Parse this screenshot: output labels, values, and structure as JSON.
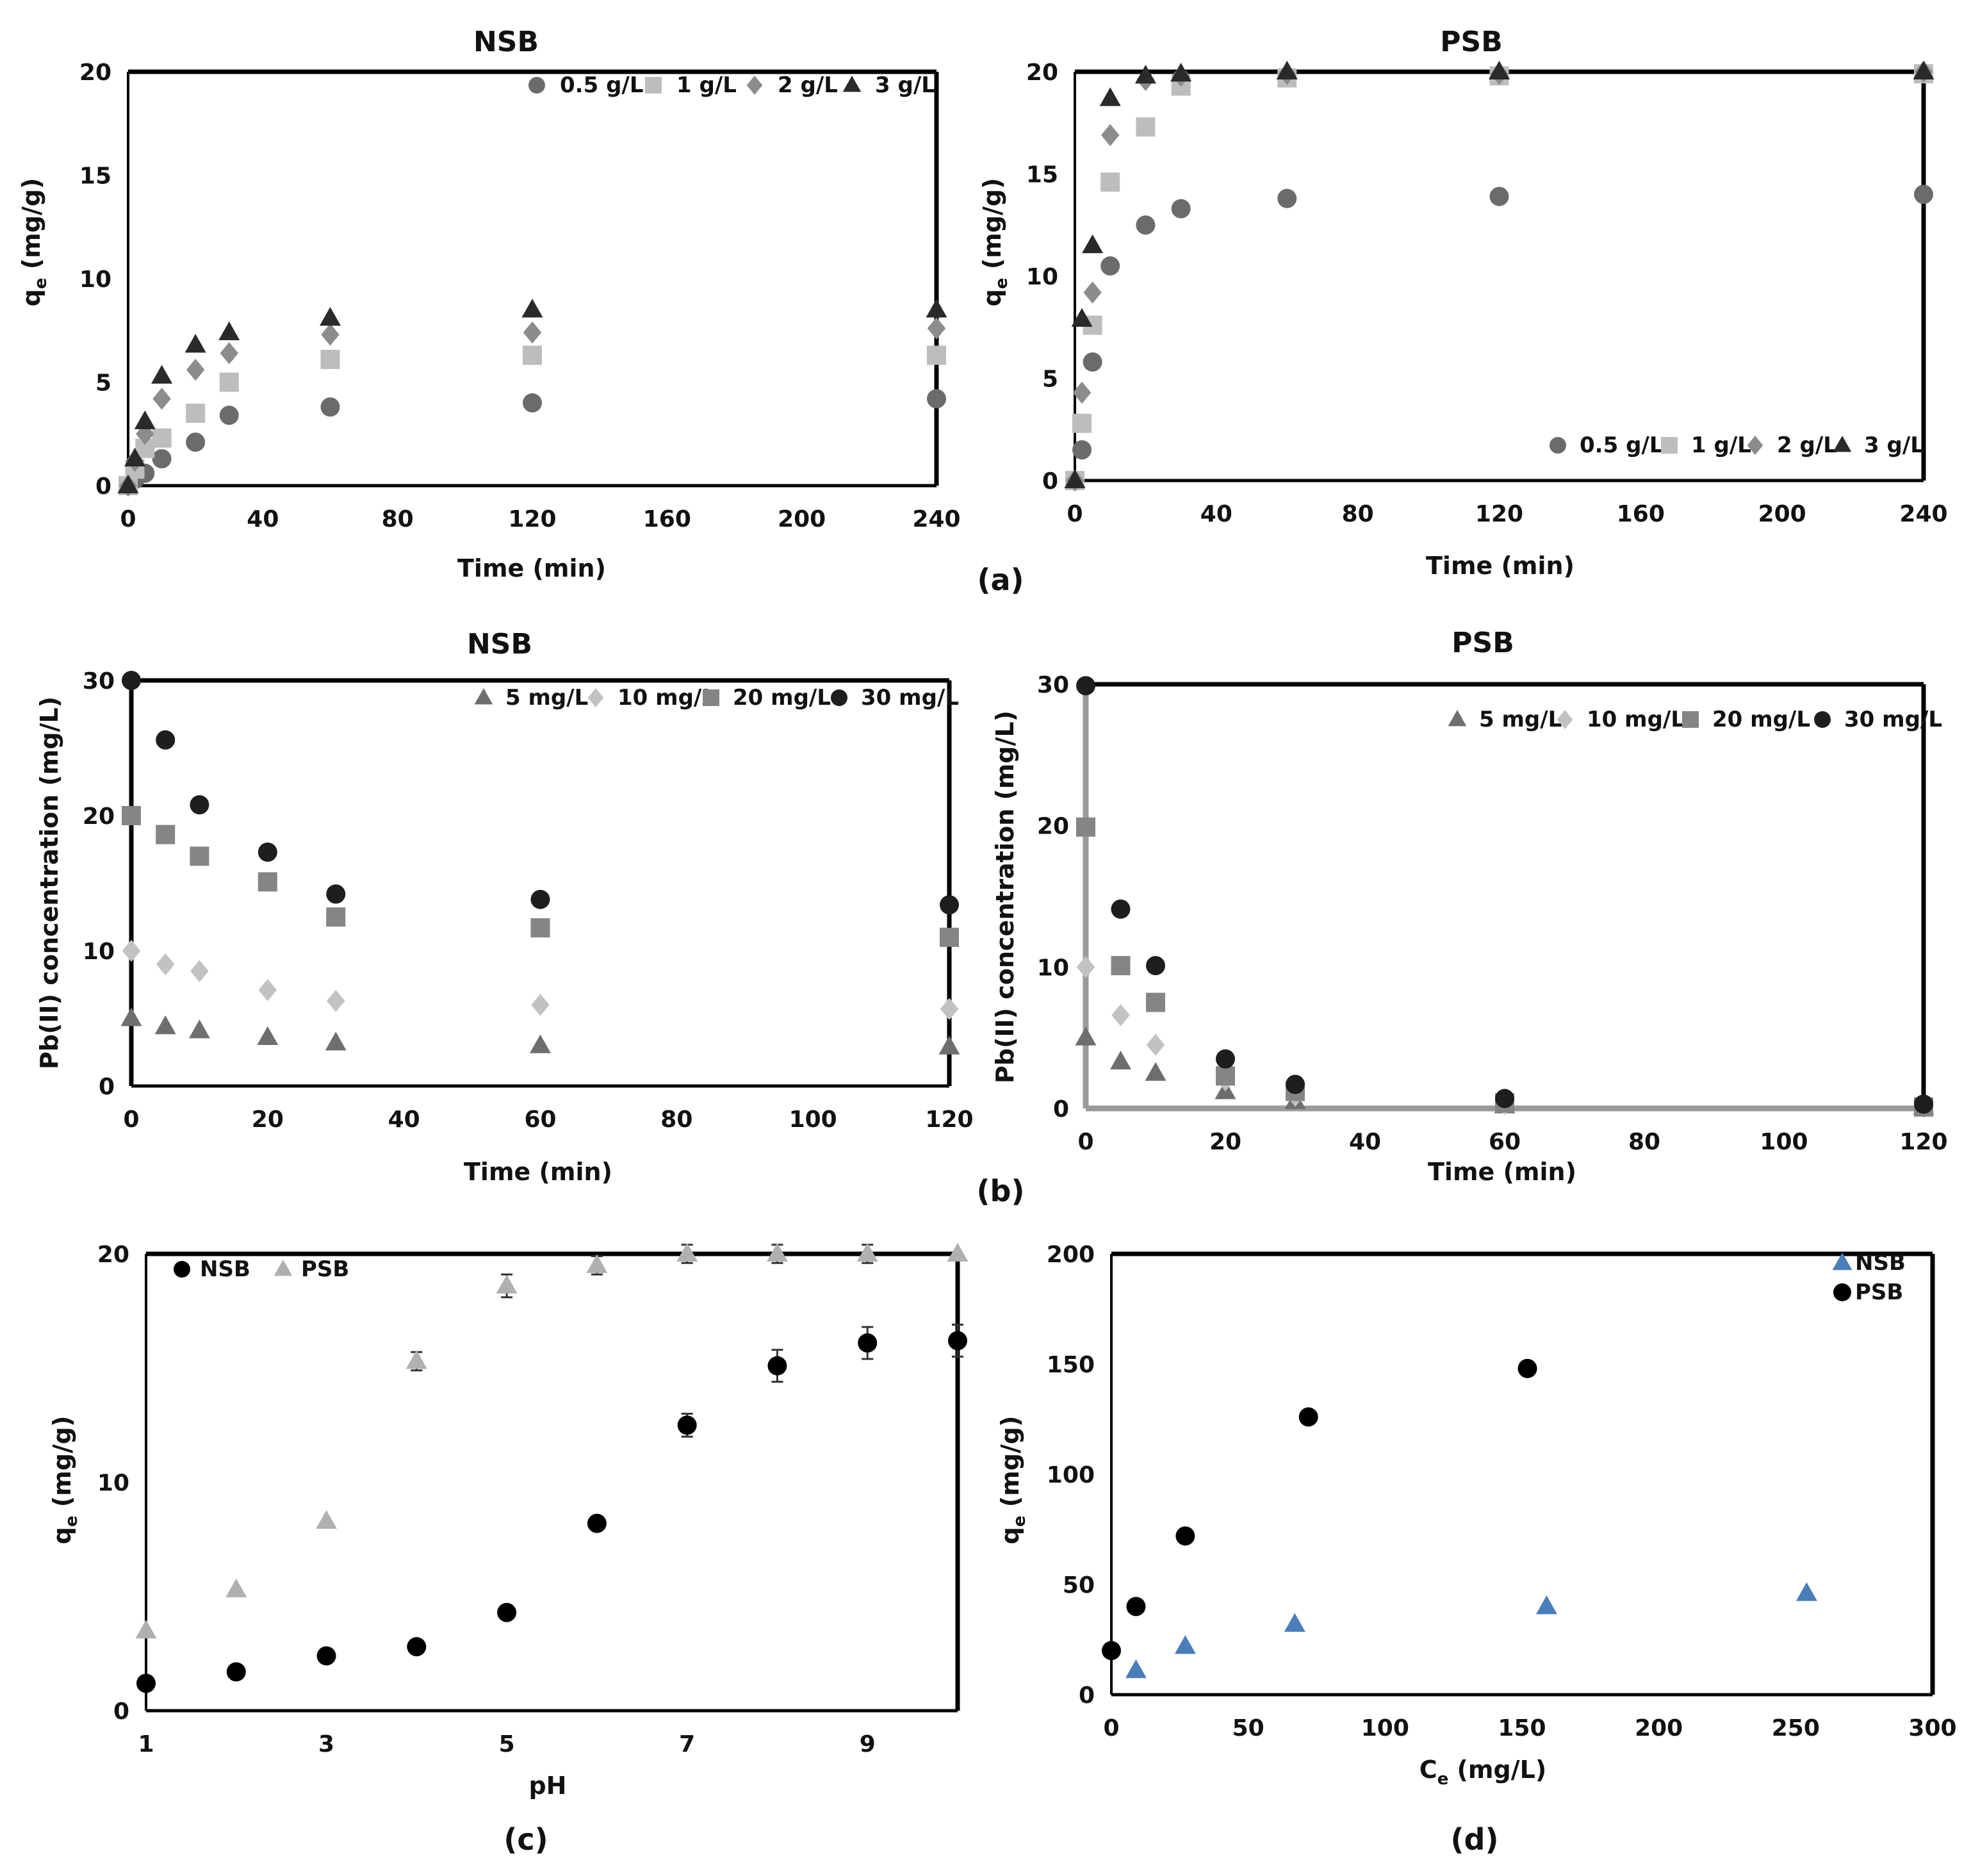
{
  "captions": {
    "a": "(a)",
    "b": "(b)",
    "c": "(c)",
    "d": "(d)"
  },
  "chart_data": [
    {
      "id": "a1",
      "type": "scatter",
      "title": "NSB",
      "xlabel": "Time (min)",
      "ylabel": "qe (mg/g)",
      "ylabel_main": "q",
      "ylabel_sub": "e",
      "ylabel_rest": " (mg/g)",
      "xlim": [
        0,
        240
      ],
      "ylim": [
        0,
        20
      ],
      "xticks": [
        0,
        40,
        80,
        120,
        160,
        200,
        240
      ],
      "yticks": [
        0,
        5,
        10,
        15,
        20
      ],
      "legend_position": "top-right",
      "series": [
        {
          "name": "0.5 g/L",
          "marker": "circle",
          "color": "#6b6b6b",
          "x": [
            0,
            2,
            5,
            10,
            20,
            30,
            60,
            120,
            240
          ],
          "y": [
            0,
            0.3,
            0.6,
            1.3,
            2.1,
            3.4,
            3.8,
            4.0,
            4.2
          ]
        },
        {
          "name": "1 g/L",
          "marker": "square",
          "color": "#bdbdbd",
          "x": [
            0,
            2,
            5,
            10,
            20,
            30,
            60,
            120,
            240
          ],
          "y": [
            0,
            0.8,
            1.8,
            2.3,
            3.5,
            5.0,
            6.1,
            6.3,
            6.3
          ]
        },
        {
          "name": "2 g/L",
          "marker": "diamond",
          "color": "#8c8c8c",
          "x": [
            0,
            2,
            5,
            10,
            20,
            30,
            60,
            120,
            240
          ],
          "y": [
            0,
            1.2,
            2.5,
            4.2,
            5.6,
            6.4,
            7.3,
            7.4,
            7.6
          ]
        },
        {
          "name": "3 g/L",
          "marker": "triangle",
          "color": "#2a2a2a",
          "x": [
            0,
            2,
            5,
            10,
            20,
            30,
            60,
            120,
            240
          ],
          "y": [
            0,
            1.3,
            3.1,
            5.3,
            6.8,
            7.4,
            8.1,
            8.5,
            8.5
          ]
        }
      ]
    },
    {
      "id": "a2",
      "type": "scatter",
      "title": "PSB",
      "xlabel": "Time (min)",
      "ylabel": "qe (mg/g)",
      "ylabel_main": "q",
      "ylabel_sub": "e",
      "ylabel_rest": " (mg/g)",
      "xlim": [
        0,
        240
      ],
      "ylim": [
        0,
        20
      ],
      "xticks": [
        0,
        40,
        80,
        120,
        160,
        200,
        240
      ],
      "yticks": [
        0,
        5,
        10,
        15,
        20
      ],
      "legend_position": "bottom-right",
      "series": [
        {
          "name": "0.5 g/L",
          "marker": "circle",
          "color": "#6b6b6b",
          "x": [
            0,
            2,
            5,
            10,
            20,
            30,
            60,
            120,
            240
          ],
          "y": [
            0,
            1.5,
            5.8,
            10.5,
            12.5,
            13.3,
            13.8,
            13.9,
            14.0
          ]
        },
        {
          "name": "1 g/L",
          "marker": "square",
          "color": "#bdbdbd",
          "x": [
            0,
            2,
            5,
            10,
            20,
            30,
            60,
            120,
            240
          ],
          "y": [
            0,
            2.8,
            7.6,
            14.6,
            17.3,
            19.3,
            19.7,
            19.8,
            19.9
          ]
        },
        {
          "name": "2 g/L",
          "marker": "diamond",
          "color": "#8c8c8c",
          "x": [
            0,
            2,
            5,
            10,
            20,
            30,
            60,
            120,
            240
          ],
          "y": [
            0,
            4.3,
            9.2,
            16.9,
            19.6,
            19.8,
            19.9,
            19.9,
            20.0
          ]
        },
        {
          "name": "3 g/L",
          "marker": "triangle",
          "color": "#2a2a2a",
          "x": [
            0,
            2,
            5,
            10,
            20,
            30,
            60,
            120,
            240
          ],
          "y": [
            0,
            7.9,
            11.5,
            18.7,
            19.8,
            19.9,
            20.0,
            20.0,
            20.0
          ]
        }
      ]
    },
    {
      "id": "b1",
      "type": "scatter",
      "title": "NSB",
      "xlabel": "Time (min)",
      "ylabel": "Pb(II) concentration (mg/L)",
      "xlim": [
        0,
        120
      ],
      "ylim": [
        0,
        30
      ],
      "xticks": [
        0,
        20,
        40,
        60,
        80,
        100,
        120
      ],
      "yticks": [
        0,
        10,
        20,
        30
      ],
      "legend_position": "top-right",
      "series": [
        {
          "name": "5 mg/L",
          "marker": "triangle",
          "color": "#6e6e6e",
          "x": [
            0,
            5,
            10,
            20,
            30,
            60,
            120
          ],
          "y": [
            5.0,
            4.4,
            4.1,
            3.6,
            3.2,
            3.0,
            2.9
          ]
        },
        {
          "name": "10 mg/L",
          "marker": "diamond",
          "color": "#c2c2c2",
          "x": [
            0,
            5,
            10,
            20,
            30,
            60,
            120
          ],
          "y": [
            10.0,
            9.0,
            8.5,
            7.1,
            6.3,
            6.0,
            5.7
          ]
        },
        {
          "name": "20 mg/L",
          "marker": "square",
          "color": "#858585",
          "x": [
            0,
            5,
            10,
            20,
            30,
            60,
            120
          ],
          "y": [
            20.0,
            18.6,
            17.0,
            15.1,
            12.5,
            11.7,
            11.0
          ]
        },
        {
          "name": "30 mg/L",
          "marker": "circle",
          "color": "#1e1e1e",
          "x": [
            0,
            5,
            10,
            20,
            30,
            60,
            120
          ],
          "y": [
            30.0,
            25.6,
            20.8,
            17.3,
            14.2,
            13.8,
            13.4
          ]
        }
      ]
    },
    {
      "id": "b2",
      "type": "scatter",
      "title": "PSB",
      "xlabel": "Time (min)",
      "ylabel": "Pb(II) concentration (mg/L)",
      "xlim": [
        0,
        120
      ],
      "ylim": [
        0,
        30
      ],
      "xticks": [
        0,
        20,
        40,
        60,
        80,
        100,
        120
      ],
      "yticks": [
        0,
        10,
        20,
        30
      ],
      "legend_position": "top-right",
      "series": [
        {
          "name": "5 mg/L",
          "marker": "triangle",
          "color": "#6e6e6e",
          "x": [
            0,
            5,
            10,
            20,
            30,
            60,
            120
          ],
          "y": [
            5.0,
            3.3,
            2.5,
            1.2,
            0.5,
            0.2,
            0.1
          ]
        },
        {
          "name": "10 mg/L",
          "marker": "diamond",
          "color": "#c2c2c2",
          "x": [
            0,
            5,
            10,
            20,
            30,
            60,
            120
          ],
          "y": [
            10.0,
            6.6,
            4.5,
            2.0,
            0.9,
            0.3,
            0.1
          ]
        },
        {
          "name": "20 mg/L",
          "marker": "square",
          "color": "#858585",
          "x": [
            0,
            5,
            10,
            20,
            30,
            60,
            120
          ],
          "y": [
            19.9,
            10.1,
            7.5,
            2.3,
            1.2,
            0.4,
            0.1
          ]
        },
        {
          "name": "30 mg/L",
          "marker": "circle",
          "color": "#1e1e1e",
          "x": [
            0,
            5,
            10,
            20,
            30,
            60,
            120
          ],
          "y": [
            29.9,
            14.1,
            10.1,
            3.5,
            1.7,
            0.7,
            0.3
          ]
        }
      ]
    },
    {
      "id": "c",
      "type": "scatter",
      "title": "",
      "xlabel": "pH",
      "ylabel": "qe (mg/g)",
      "ylabel_main": "q",
      "ylabel_sub": "e",
      "ylabel_rest": " (mg/g)",
      "xlim": [
        1,
        10
      ],
      "ylim": [
        0,
        20
      ],
      "xticks": [
        1,
        3,
        5,
        7,
        9
      ],
      "yticks": [
        0,
        10,
        20
      ],
      "legend_position": "top-left",
      "series": [
        {
          "name": "NSB",
          "marker": "circle",
          "color": "#000000",
          "x": [
            1,
            2,
            3,
            4,
            5,
            6,
            7,
            8,
            9,
            10
          ],
          "y": [
            1.2,
            1.7,
            2.4,
            2.8,
            4.3,
            8.2,
            12.5,
            15.1,
            16.1,
            16.2
          ],
          "err": [
            0,
            0,
            0,
            0,
            0,
            0,
            0.5,
            0.7,
            0.7,
            0.7
          ]
        },
        {
          "name": "PSB",
          "marker": "triangle",
          "color": "#b0b0b0",
          "x": [
            1,
            2,
            3,
            4,
            5,
            6,
            7,
            8,
            9,
            10
          ],
          "y": [
            3.5,
            5.3,
            8.3,
            15.3,
            18.6,
            19.5,
            20.0,
            20.0,
            20.0,
            20.0
          ],
          "err": [
            0,
            0,
            0,
            0.4,
            0.5,
            0.4,
            0.4,
            0.4,
            0.4,
            0
          ]
        }
      ]
    },
    {
      "id": "d",
      "type": "scatter",
      "title": "",
      "xlabel": "Ce (mg/L)",
      "xlabel_main": "C",
      "xlabel_sub": "e",
      "xlabel_rest": " (mg/L)",
      "ylabel": "qe (mg/g)",
      "ylabel_main": "q",
      "ylabel_sub": "e",
      "ylabel_rest": " (mg/g)",
      "xlim": [
        0,
        300
      ],
      "ylim": [
        0,
        200
      ],
      "xticks": [
        0,
        50,
        100,
        150,
        200,
        250,
        300
      ],
      "yticks": [
        0,
        50,
        100,
        150,
        200
      ],
      "legend_position": "top-right",
      "series": [
        {
          "name": "NSB",
          "marker": "triangle",
          "color": "#4a7ebb",
          "x": [
            9,
            27,
            67,
            159,
            254
          ],
          "y": [
            11,
            22,
            32,
            40,
            46
          ]
        },
        {
          "name": "PSB",
          "marker": "circle",
          "color": "#000000",
          "x": [
            0,
            9,
            27,
            72,
            152
          ],
          "y": [
            20,
            40,
            72,
            126,
            148
          ]
        }
      ]
    }
  ]
}
